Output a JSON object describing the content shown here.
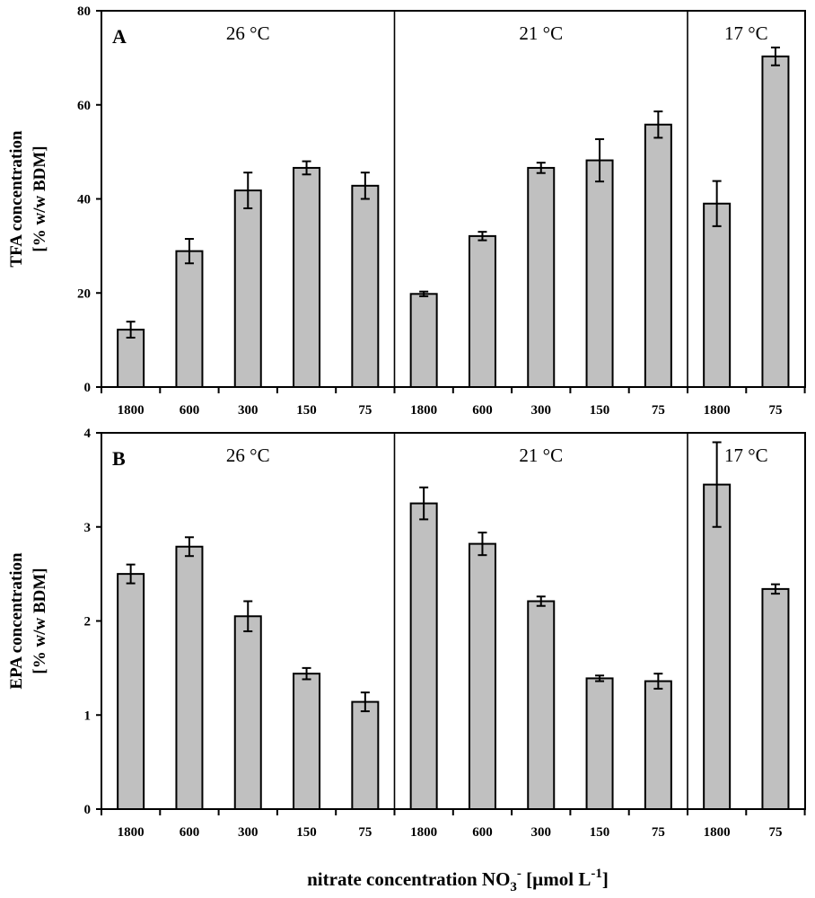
{
  "chart_data": [
    {
      "type": "bar",
      "panel": "A",
      "ylabel_line1": "TFA concentration",
      "ylabel_line2": "[% w/w BDM]",
      "ylim": [
        0,
        80
      ],
      "yticks": [
        0,
        20,
        40,
        60,
        80
      ],
      "groups": [
        {
          "label": "26 °C",
          "categories": [
            "1800",
            "600",
            "300",
            "150",
            "75"
          ],
          "values": [
            12.2,
            28.9,
            41.8,
            46.6,
            42.8
          ],
          "errors": [
            1.7,
            2.6,
            3.8,
            1.4,
            2.8
          ]
        },
        {
          "label": "21 °C",
          "categories": [
            "1800",
            "600",
            "300",
            "150",
            "75"
          ],
          "values": [
            19.8,
            32.1,
            46.6,
            48.2,
            55.8
          ],
          "errors": [
            0.5,
            0.9,
            1.1,
            4.5,
            2.8
          ]
        },
        {
          "label": "17 °C",
          "categories": [
            "1800",
            "75"
          ],
          "values": [
            39.0,
            70.3
          ],
          "errors": [
            4.8,
            1.9
          ]
        }
      ]
    },
    {
      "type": "bar",
      "panel": "B",
      "ylabel_line1": "EPA concentration",
      "ylabel_line2": "[% w/w BDM]",
      "ylim": [
        0,
        4
      ],
      "yticks": [
        0,
        1,
        2,
        3,
        4
      ],
      "groups": [
        {
          "label": "26 °C",
          "categories": [
            "1800",
            "600",
            "300",
            "150",
            "75"
          ],
          "values": [
            2.5,
            2.79,
            2.05,
            1.44,
            1.14
          ],
          "errors": [
            0.1,
            0.1,
            0.16,
            0.06,
            0.1
          ]
        },
        {
          "label": "21 °C",
          "categories": [
            "1800",
            "600",
            "300",
            "150",
            "75"
          ],
          "values": [
            3.25,
            2.82,
            2.21,
            1.39,
            1.36
          ],
          "errors": [
            0.17,
            0.12,
            0.05,
            0.03,
            0.08
          ]
        },
        {
          "label": "17 °C",
          "categories": [
            "1800",
            "75"
          ],
          "values": [
            3.45,
            2.34
          ],
          "errors": [
            0.45,
            0.05
          ]
        }
      ]
    }
  ],
  "xlabel": {
    "main": "nitrate concentration NO",
    "sub": "3",
    "sup": "-",
    "rest": " [µmol L",
    "exp": "-1",
    "close": "]"
  }
}
